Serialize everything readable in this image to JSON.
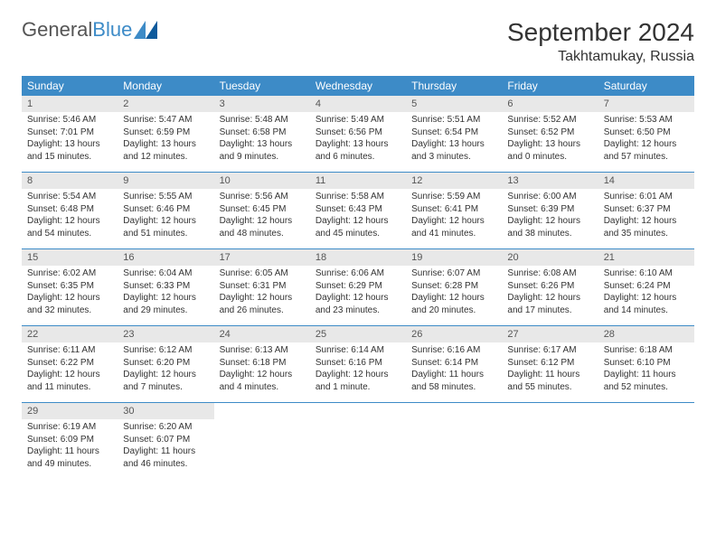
{
  "logo": {
    "text1": "General",
    "text2": "Blue"
  },
  "title": "September 2024",
  "location": "Takhtamukay, Russia",
  "header_bg": "#3d8bc7",
  "daynum_bg": "#e8e8e8",
  "weekdays": [
    "Sunday",
    "Monday",
    "Tuesday",
    "Wednesday",
    "Thursday",
    "Friday",
    "Saturday"
  ],
  "weeks": [
    [
      {
        "n": "1",
        "sr": "Sunrise: 5:46 AM",
        "ss": "Sunset: 7:01 PM",
        "dl": "Daylight: 13 hours and 15 minutes."
      },
      {
        "n": "2",
        "sr": "Sunrise: 5:47 AM",
        "ss": "Sunset: 6:59 PM",
        "dl": "Daylight: 13 hours and 12 minutes."
      },
      {
        "n": "3",
        "sr": "Sunrise: 5:48 AM",
        "ss": "Sunset: 6:58 PM",
        "dl": "Daylight: 13 hours and 9 minutes."
      },
      {
        "n": "4",
        "sr": "Sunrise: 5:49 AM",
        "ss": "Sunset: 6:56 PM",
        "dl": "Daylight: 13 hours and 6 minutes."
      },
      {
        "n": "5",
        "sr": "Sunrise: 5:51 AM",
        "ss": "Sunset: 6:54 PM",
        "dl": "Daylight: 13 hours and 3 minutes."
      },
      {
        "n": "6",
        "sr": "Sunrise: 5:52 AM",
        "ss": "Sunset: 6:52 PM",
        "dl": "Daylight: 13 hours and 0 minutes."
      },
      {
        "n": "7",
        "sr": "Sunrise: 5:53 AM",
        "ss": "Sunset: 6:50 PM",
        "dl": "Daylight: 12 hours and 57 minutes."
      }
    ],
    [
      {
        "n": "8",
        "sr": "Sunrise: 5:54 AM",
        "ss": "Sunset: 6:48 PM",
        "dl": "Daylight: 12 hours and 54 minutes."
      },
      {
        "n": "9",
        "sr": "Sunrise: 5:55 AM",
        "ss": "Sunset: 6:46 PM",
        "dl": "Daylight: 12 hours and 51 minutes."
      },
      {
        "n": "10",
        "sr": "Sunrise: 5:56 AM",
        "ss": "Sunset: 6:45 PM",
        "dl": "Daylight: 12 hours and 48 minutes."
      },
      {
        "n": "11",
        "sr": "Sunrise: 5:58 AM",
        "ss": "Sunset: 6:43 PM",
        "dl": "Daylight: 12 hours and 45 minutes."
      },
      {
        "n": "12",
        "sr": "Sunrise: 5:59 AM",
        "ss": "Sunset: 6:41 PM",
        "dl": "Daylight: 12 hours and 41 minutes."
      },
      {
        "n": "13",
        "sr": "Sunrise: 6:00 AM",
        "ss": "Sunset: 6:39 PM",
        "dl": "Daylight: 12 hours and 38 minutes."
      },
      {
        "n": "14",
        "sr": "Sunrise: 6:01 AM",
        "ss": "Sunset: 6:37 PM",
        "dl": "Daylight: 12 hours and 35 minutes."
      }
    ],
    [
      {
        "n": "15",
        "sr": "Sunrise: 6:02 AM",
        "ss": "Sunset: 6:35 PM",
        "dl": "Daylight: 12 hours and 32 minutes."
      },
      {
        "n": "16",
        "sr": "Sunrise: 6:04 AM",
        "ss": "Sunset: 6:33 PM",
        "dl": "Daylight: 12 hours and 29 minutes."
      },
      {
        "n": "17",
        "sr": "Sunrise: 6:05 AM",
        "ss": "Sunset: 6:31 PM",
        "dl": "Daylight: 12 hours and 26 minutes."
      },
      {
        "n": "18",
        "sr": "Sunrise: 6:06 AM",
        "ss": "Sunset: 6:29 PM",
        "dl": "Daylight: 12 hours and 23 minutes."
      },
      {
        "n": "19",
        "sr": "Sunrise: 6:07 AM",
        "ss": "Sunset: 6:28 PM",
        "dl": "Daylight: 12 hours and 20 minutes."
      },
      {
        "n": "20",
        "sr": "Sunrise: 6:08 AM",
        "ss": "Sunset: 6:26 PM",
        "dl": "Daylight: 12 hours and 17 minutes."
      },
      {
        "n": "21",
        "sr": "Sunrise: 6:10 AM",
        "ss": "Sunset: 6:24 PM",
        "dl": "Daylight: 12 hours and 14 minutes."
      }
    ],
    [
      {
        "n": "22",
        "sr": "Sunrise: 6:11 AM",
        "ss": "Sunset: 6:22 PM",
        "dl": "Daylight: 12 hours and 11 minutes."
      },
      {
        "n": "23",
        "sr": "Sunrise: 6:12 AM",
        "ss": "Sunset: 6:20 PM",
        "dl": "Daylight: 12 hours and 7 minutes."
      },
      {
        "n": "24",
        "sr": "Sunrise: 6:13 AM",
        "ss": "Sunset: 6:18 PM",
        "dl": "Daylight: 12 hours and 4 minutes."
      },
      {
        "n": "25",
        "sr": "Sunrise: 6:14 AM",
        "ss": "Sunset: 6:16 PM",
        "dl": "Daylight: 12 hours and 1 minute."
      },
      {
        "n": "26",
        "sr": "Sunrise: 6:16 AM",
        "ss": "Sunset: 6:14 PM",
        "dl": "Daylight: 11 hours and 58 minutes."
      },
      {
        "n": "27",
        "sr": "Sunrise: 6:17 AM",
        "ss": "Sunset: 6:12 PM",
        "dl": "Daylight: 11 hours and 55 minutes."
      },
      {
        "n": "28",
        "sr": "Sunrise: 6:18 AM",
        "ss": "Sunset: 6:10 PM",
        "dl": "Daylight: 11 hours and 52 minutes."
      }
    ],
    [
      {
        "n": "29",
        "sr": "Sunrise: 6:19 AM",
        "ss": "Sunset: 6:09 PM",
        "dl": "Daylight: 11 hours and 49 minutes."
      },
      {
        "n": "30",
        "sr": "Sunrise: 6:20 AM",
        "ss": "Sunset: 6:07 PM",
        "dl": "Daylight: 11 hours and 46 minutes."
      },
      null,
      null,
      null,
      null,
      null
    ]
  ]
}
